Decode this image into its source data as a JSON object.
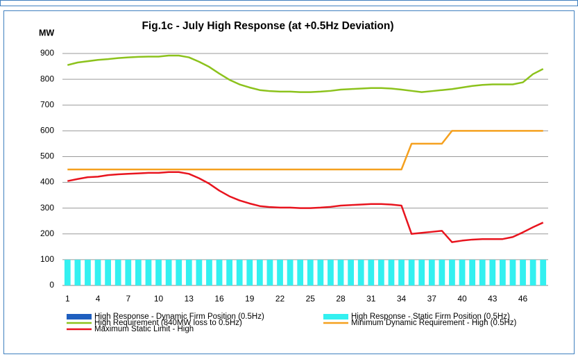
{
  "chart_data": {
    "type": "combo",
    "title": "Fig.1c - July High Response (at +0.5Hz Deviation)",
    "y_label": "MW",
    "categories": [
      1,
      null,
      null,
      4,
      null,
      null,
      7,
      null,
      null,
      10,
      null,
      null,
      13,
      null,
      null,
      16,
      null,
      null,
      19,
      null,
      null,
      22,
      null,
      null,
      25,
      null,
      null,
      28,
      null,
      null,
      31,
      null,
      null,
      34,
      null,
      null,
      37,
      null,
      null,
      40,
      null,
      null,
      43,
      null,
      null,
      46,
      null,
      null
    ],
    "ylim": [
      0,
      900
    ],
    "yticks": [
      0,
      100,
      200,
      300,
      400,
      500,
      600,
      700,
      800,
      900
    ],
    "grid": true,
    "series": [
      {
        "name": "High Response - Dynamic Firm Position (0.5Hz)",
        "type": "bar",
        "color": "#1f5fbf",
        "values": [
          0,
          0,
          0,
          0,
          0,
          0,
          0,
          0,
          0,
          0,
          0,
          0,
          0,
          0,
          0,
          0,
          0,
          0,
          0,
          0,
          0,
          0,
          0,
          0,
          0,
          0,
          0,
          0,
          0,
          0,
          0,
          0,
          0,
          0,
          0,
          0,
          0,
          0,
          0,
          0,
          0,
          0,
          0,
          0,
          0,
          0,
          0,
          0
        ]
      },
      {
        "name": "High Response - Static Firm Position (0.5Hz)",
        "type": "bar",
        "color": "#33f0f0",
        "values": [
          100,
          100,
          100,
          100,
          100,
          100,
          100,
          100,
          100,
          100,
          100,
          100,
          100,
          100,
          100,
          100,
          100,
          100,
          100,
          100,
          100,
          100,
          100,
          100,
          100,
          100,
          100,
          100,
          100,
          100,
          100,
          100,
          100,
          100,
          100,
          100,
          100,
          100,
          100,
          100,
          100,
          100,
          100,
          100,
          100,
          100,
          100,
          100
        ]
      },
      {
        "name": "High Requirement (840MW loss to 0.5Hz)",
        "type": "line",
        "color": "#8cc21c",
        "values": [
          855,
          865,
          870,
          875,
          878,
          882,
          885,
          887,
          888,
          888,
          892,
          892,
          885,
          868,
          848,
          822,
          798,
          780,
          768,
          758,
          754,
          752,
          752,
          750,
          750,
          752,
          755,
          760,
          762,
          764,
          766,
          766,
          764,
          760,
          755,
          750,
          754,
          758,
          762,
          768,
          774,
          778,
          780,
          780,
          780,
          788,
          820,
          840
        ]
      },
      {
        "name": "Minimum Dynamic Requirement - High (0.5Hz)",
        "type": "line",
        "color": "#f5a01e",
        "values": [
          450,
          450,
          450,
          450,
          450,
          450,
          450,
          450,
          450,
          450,
          450,
          450,
          450,
          450,
          450,
          450,
          450,
          450,
          450,
          450,
          450,
          450,
          450,
          450,
          450,
          450,
          450,
          450,
          450,
          450,
          450,
          450,
          450,
          450,
          550,
          550,
          550,
          550,
          600,
          600,
          600,
          600,
          600,
          600,
          600,
          600,
          600,
          600
        ]
      },
      {
        "name": "Maximum Static Limit - High",
        "type": "line",
        "color": "#e8141e",
        "values": [
          405,
          413,
          420,
          422,
          428,
          431,
          433,
          435,
          437,
          437,
          440,
          440,
          433,
          416,
          395,
          368,
          346,
          330,
          318,
          308,
          304,
          302,
          302,
          300,
          300,
          302,
          305,
          310,
          312,
          314,
          316,
          316,
          314,
          310,
          200,
          204,
          208,
          212,
          168,
          174,
          178,
          180,
          180,
          180,
          188,
          206,
          226,
          244
        ]
      }
    ]
  }
}
